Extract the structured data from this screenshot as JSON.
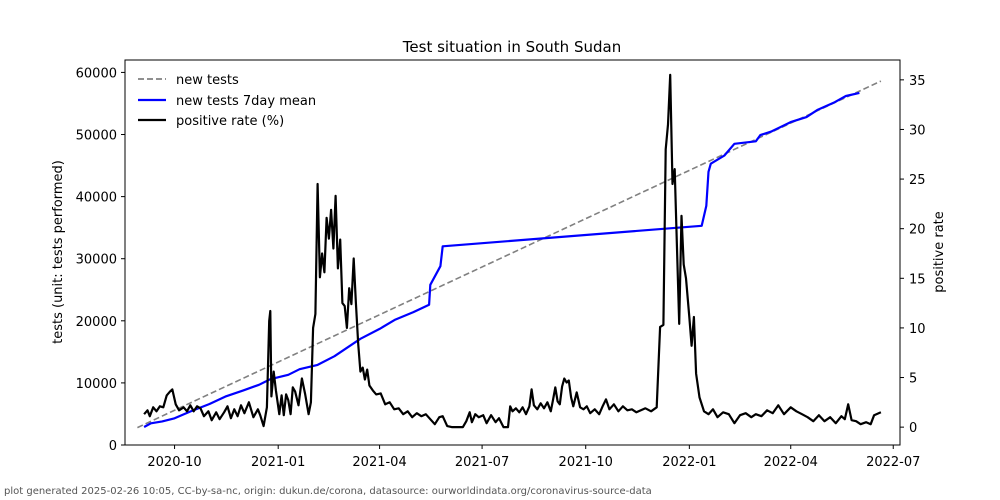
{
  "chart_data": {
    "type": "line",
    "title": "Test situation in South Sudan",
    "ylabel": "tests (unit: tests performed)",
    "y2label": "positive rate",
    "ylim": [
      0,
      62000
    ],
    "y2lim": [
      -1.8,
      37.0
    ],
    "xlim": [
      "2020-08-18",
      "2022-07-07"
    ],
    "yticks": [
      0,
      10000,
      20000,
      30000,
      40000,
      50000,
      60000
    ],
    "y2ticks": [
      0,
      5,
      10,
      15,
      20,
      25,
      30,
      35
    ],
    "xticks": [
      "2020-10",
      "2021-01",
      "2021-04",
      "2021-07",
      "2021-10",
      "2022-01",
      "2022-04",
      "2022-07"
    ],
    "legend_position": "top-left",
    "colors": {
      "new_tests": "#808080",
      "mean": "#0000ff",
      "positive": "#000000"
    },
    "series": [
      {
        "name": "new tests",
        "axis": "left",
        "style": "dashed",
        "points": [
          [
            "2020-08-29",
            2800
          ],
          [
            "2022-06-20",
            58600
          ]
        ]
      },
      {
        "name": "new tests 7day mean",
        "axis": "left",
        "style": "solid",
        "points": [
          [
            "2020-09-04",
            2900
          ],
          [
            "2020-09-10",
            3500
          ],
          [
            "2020-09-20",
            3800
          ],
          [
            "2020-10-01",
            4300
          ],
          [
            "2020-10-15",
            5400
          ],
          [
            "2020-11-01",
            6600
          ],
          [
            "2020-11-15",
            7800
          ],
          [
            "2020-12-01",
            8800
          ],
          [
            "2020-12-15",
            9700
          ],
          [
            "2020-12-25",
            10600
          ],
          [
            "2021-01-10",
            11300
          ],
          [
            "2021-01-20",
            12200
          ],
          [
            "2021-02-05",
            12900
          ],
          [
            "2021-02-20",
            14300
          ],
          [
            "2021-03-05",
            15900
          ],
          [
            "2021-03-15",
            17100
          ],
          [
            "2021-04-01",
            18700
          ],
          [
            "2021-04-15",
            20200
          ],
          [
            "2021-05-01",
            21400
          ],
          [
            "2021-05-15",
            22600
          ],
          [
            "2021-05-16",
            25800
          ],
          [
            "2021-05-25",
            28800
          ],
          [
            "2021-05-27",
            32000
          ],
          [
            "2022-01-12",
            35300
          ],
          [
            "2022-01-16",
            38500
          ],
          [
            "2022-01-18",
            44000
          ],
          [
            "2022-01-20",
            45300
          ],
          [
            "2022-02-01",
            46600
          ],
          [
            "2022-02-10",
            48500
          ],
          [
            "2022-03-01",
            48900
          ],
          [
            "2022-03-05",
            49900
          ],
          [
            "2022-03-15",
            50500
          ],
          [
            "2022-04-01",
            52000
          ],
          [
            "2022-04-15",
            52800
          ],
          [
            "2022-04-25",
            54000
          ],
          [
            "2022-05-10",
            55200
          ],
          [
            "2022-05-20",
            56200
          ],
          [
            "2022-06-01",
            56700
          ]
        ]
      },
      {
        "name": "positive rate (%)",
        "axis": "right",
        "style": "solid",
        "points": [
          [
            "2020-09-04",
            1.3
          ],
          [
            "2020-09-07",
            1.7
          ],
          [
            "2020-09-09",
            1.1
          ],
          [
            "2020-09-12",
            2.0
          ],
          [
            "2020-09-15",
            1.6
          ],
          [
            "2020-09-18",
            2.1
          ],
          [
            "2020-09-21",
            2.0
          ],
          [
            "2020-09-24",
            3.2
          ],
          [
            "2020-09-27",
            3.6
          ],
          [
            "2020-09-29",
            3.8
          ],
          [
            "2020-10-02",
            2.3
          ],
          [
            "2020-10-05",
            1.7
          ],
          [
            "2020-10-09",
            2.0
          ],
          [
            "2020-10-12",
            1.6
          ],
          [
            "2020-10-15",
            2.2
          ],
          [
            "2020-10-18",
            1.6
          ],
          [
            "2020-10-21",
            2.1
          ],
          [
            "2020-10-24",
            1.9
          ],
          [
            "2020-10-27",
            1.1
          ],
          [
            "2020-10-31",
            1.6
          ],
          [
            "2020-11-03",
            0.7
          ],
          [
            "2020-11-07",
            1.5
          ],
          [
            "2020-11-10",
            0.8
          ],
          [
            "2020-11-14",
            1.5
          ],
          [
            "2020-11-17",
            2.1
          ],
          [
            "2020-11-20",
            0.9
          ],
          [
            "2020-11-23",
            1.8
          ],
          [
            "2020-11-26",
            1.1
          ],
          [
            "2020-11-29",
            2.2
          ],
          [
            "2020-12-02",
            1.4
          ],
          [
            "2020-12-06",
            2.5
          ],
          [
            "2020-12-10",
            1.0
          ],
          [
            "2020-12-14",
            1.8
          ],
          [
            "2020-12-16",
            1.2
          ],
          [
            "2020-12-19",
            0.1
          ],
          [
            "2020-12-22",
            2.0
          ],
          [
            "2020-12-24",
            10.7
          ],
          [
            "2020-12-25",
            11.7
          ],
          [
            "2020-12-26",
            3.1
          ],
          [
            "2020-12-28",
            5.6
          ],
          [
            "2020-12-30",
            3.7
          ],
          [
            "2021-01-02",
            1.3
          ],
          [
            "2021-01-04",
            3.2
          ],
          [
            "2021-01-06",
            1.2
          ],
          [
            "2021-01-08",
            3.3
          ],
          [
            "2021-01-10",
            2.7
          ],
          [
            "2021-01-12",
            1.3
          ],
          [
            "2021-01-14",
            4.0
          ],
          [
            "2021-01-16",
            3.6
          ],
          [
            "2021-01-19",
            2.2
          ],
          [
            "2021-01-22",
            4.9
          ],
          [
            "2021-01-25",
            3.3
          ],
          [
            "2021-01-28",
            1.3
          ],
          [
            "2021-01-30",
            2.5
          ],
          [
            "2021-02-01",
            10.0
          ],
          [
            "2021-02-03",
            11.4
          ],
          [
            "2021-02-05",
            24.5
          ],
          [
            "2021-02-07",
            15.1
          ],
          [
            "2021-02-09",
            17.5
          ],
          [
            "2021-02-11",
            15.6
          ],
          [
            "2021-02-13",
            21.1
          ],
          [
            "2021-02-15",
            19.0
          ],
          [
            "2021-02-17",
            21.9
          ],
          [
            "2021-02-19",
            18.0
          ],
          [
            "2021-02-21",
            23.3
          ],
          [
            "2021-02-23",
            16.0
          ],
          [
            "2021-02-25",
            18.9
          ],
          [
            "2021-02-27",
            12.5
          ],
          [
            "2021-03-01",
            12.2
          ],
          [
            "2021-03-03",
            10.0
          ],
          [
            "2021-03-05",
            14.0
          ],
          [
            "2021-03-07",
            12.4
          ],
          [
            "2021-03-09",
            17.0
          ],
          [
            "2021-03-11",
            12.5
          ],
          [
            "2021-03-13",
            8.4
          ],
          [
            "2021-03-15",
            5.6
          ],
          [
            "2021-03-17",
            6.0
          ],
          [
            "2021-03-19",
            4.8
          ],
          [
            "2021-03-21",
            5.8
          ],
          [
            "2021-03-23",
            4.2
          ],
          [
            "2021-03-26",
            3.7
          ],
          [
            "2021-03-29",
            3.3
          ],
          [
            "2021-04-02",
            3.4
          ],
          [
            "2021-04-06",
            2.3
          ],
          [
            "2021-04-10",
            2.5
          ],
          [
            "2021-04-14",
            1.8
          ],
          [
            "2021-04-18",
            1.9
          ],
          [
            "2021-04-22",
            1.3
          ],
          [
            "2021-04-26",
            1.6
          ],
          [
            "2021-04-30",
            1.0
          ],
          [
            "2021-05-04",
            1.4
          ],
          [
            "2021-05-08",
            1.1
          ],
          [
            "2021-05-12",
            1.3
          ],
          [
            "2021-05-16",
            0.8
          ],
          [
            "2021-05-20",
            0.3
          ],
          [
            "2021-05-24",
            1.0
          ],
          [
            "2021-05-27",
            1.1
          ],
          [
            "2021-05-31",
            0.1
          ],
          [
            "2021-06-04",
            0.0
          ],
          [
            "2021-06-10",
            0.0
          ],
          [
            "2021-06-14",
            0.0
          ],
          [
            "2021-06-17",
            0.6
          ],
          [
            "2021-06-20",
            1.5
          ],
          [
            "2021-06-22",
            0.5
          ],
          [
            "2021-06-25",
            1.3
          ],
          [
            "2021-06-28",
            1.0
          ],
          [
            "2021-07-02",
            1.2
          ],
          [
            "2021-07-05",
            0.4
          ],
          [
            "2021-07-09",
            1.2
          ],
          [
            "2021-07-13",
            0.5
          ],
          [
            "2021-07-16",
            0.9
          ],
          [
            "2021-07-20",
            0.0
          ],
          [
            "2021-07-24",
            0.0
          ],
          [
            "2021-07-26",
            2.1
          ],
          [
            "2021-07-28",
            1.6
          ],
          [
            "2021-07-31",
            1.9
          ],
          [
            "2021-08-03",
            1.5
          ],
          [
            "2021-08-06",
            2.0
          ],
          [
            "2021-08-09",
            1.3
          ],
          [
            "2021-08-12",
            2.1
          ],
          [
            "2021-08-14",
            3.8
          ],
          [
            "2021-08-16",
            2.2
          ],
          [
            "2021-08-19",
            1.8
          ],
          [
            "2021-08-22",
            2.4
          ],
          [
            "2021-08-25",
            1.9
          ],
          [
            "2021-08-28",
            2.5
          ],
          [
            "2021-08-31",
            1.6
          ],
          [
            "2021-09-02",
            2.8
          ],
          [
            "2021-09-04",
            4.0
          ],
          [
            "2021-09-06",
            2.6
          ],
          [
            "2021-09-08",
            2.3
          ],
          [
            "2021-09-10",
            4.1
          ],
          [
            "2021-09-12",
            4.9
          ],
          [
            "2021-09-14",
            4.5
          ],
          [
            "2021-09-16",
            4.7
          ],
          [
            "2021-09-18",
            3.0
          ],
          [
            "2021-09-20",
            2.1
          ],
          [
            "2021-09-23",
            3.5
          ],
          [
            "2021-09-26",
            2.0
          ],
          [
            "2021-09-29",
            1.8
          ],
          [
            "2021-10-02",
            2.1
          ],
          [
            "2021-10-05",
            1.4
          ],
          [
            "2021-10-09",
            1.8
          ],
          [
            "2021-10-13",
            1.3
          ],
          [
            "2021-10-16",
            2.1
          ],
          [
            "2021-10-19",
            2.8
          ],
          [
            "2021-10-22",
            1.8
          ],
          [
            "2021-10-26",
            2.3
          ],
          [
            "2021-10-30",
            1.6
          ],
          [
            "2021-11-03",
            2.1
          ],
          [
            "2021-11-07",
            1.7
          ],
          [
            "2021-11-11",
            1.8
          ],
          [
            "2021-11-15",
            1.5
          ],
          [
            "2021-11-19",
            1.7
          ],
          [
            "2021-11-23",
            1.9
          ],
          [
            "2021-11-28",
            1.6
          ],
          [
            "2021-12-03",
            2.0
          ],
          [
            "2021-12-06",
            10.1
          ],
          [
            "2021-12-09",
            10.3
          ],
          [
            "2021-12-11",
            28.0
          ],
          [
            "2021-12-13",
            30.5
          ],
          [
            "2021-12-15",
            35.5
          ],
          [
            "2021-12-17",
            24.5
          ],
          [
            "2021-12-19",
            26.0
          ],
          [
            "2021-12-21",
            18.0
          ],
          [
            "2021-12-23",
            10.4
          ],
          [
            "2021-12-25",
            21.3
          ],
          [
            "2021-12-27",
            16.4
          ],
          [
            "2021-12-29",
            15.0
          ],
          [
            "2022-01-01",
            11.0
          ],
          [
            "2022-01-03",
            8.2
          ],
          [
            "2022-01-05",
            11.1
          ],
          [
            "2022-01-07",
            5.4
          ],
          [
            "2022-01-10",
            3.0
          ],
          [
            "2022-01-14",
            1.6
          ],
          [
            "2022-01-18",
            1.3
          ],
          [
            "2022-01-22",
            1.8
          ],
          [
            "2022-01-26",
            1.0
          ],
          [
            "2022-01-31",
            1.5
          ],
          [
            "2022-02-05",
            1.3
          ],
          [
            "2022-02-10",
            0.4
          ],
          [
            "2022-02-15",
            1.2
          ],
          [
            "2022-02-20",
            1.4
          ],
          [
            "2022-02-25",
            1.0
          ],
          [
            "2022-03-01",
            1.3
          ],
          [
            "2022-03-06",
            1.1
          ],
          [
            "2022-03-11",
            1.7
          ],
          [
            "2022-03-16",
            1.4
          ],
          [
            "2022-03-21",
            2.2
          ],
          [
            "2022-03-26",
            1.3
          ],
          [
            "2022-04-01",
            2.0
          ],
          [
            "2022-04-06",
            1.6
          ],
          [
            "2022-04-11",
            1.3
          ],
          [
            "2022-04-16",
            1.0
          ],
          [
            "2022-04-21",
            0.6
          ],
          [
            "2022-04-26",
            1.2
          ],
          [
            "2022-05-01",
            0.6
          ],
          [
            "2022-05-06",
            1.0
          ],
          [
            "2022-05-11",
            0.4
          ],
          [
            "2022-05-16",
            1.1
          ],
          [
            "2022-05-19",
            0.8
          ],
          [
            "2022-05-22",
            2.3
          ],
          [
            "2022-05-25",
            0.7
          ],
          [
            "2022-05-29",
            0.6
          ],
          [
            "2022-06-02",
            0.3
          ],
          [
            "2022-06-07",
            0.5
          ],
          [
            "2022-06-11",
            0.3
          ],
          [
            "2022-06-14",
            1.2
          ],
          [
            "2022-06-20",
            1.5
          ]
        ]
      }
    ]
  },
  "footer_text": "plot generated 2025-02-26 10:05, CC-by-sa-nc, origin: dukun.de/corona, datasource: ourworldindata.org/coronavirus-source-data"
}
